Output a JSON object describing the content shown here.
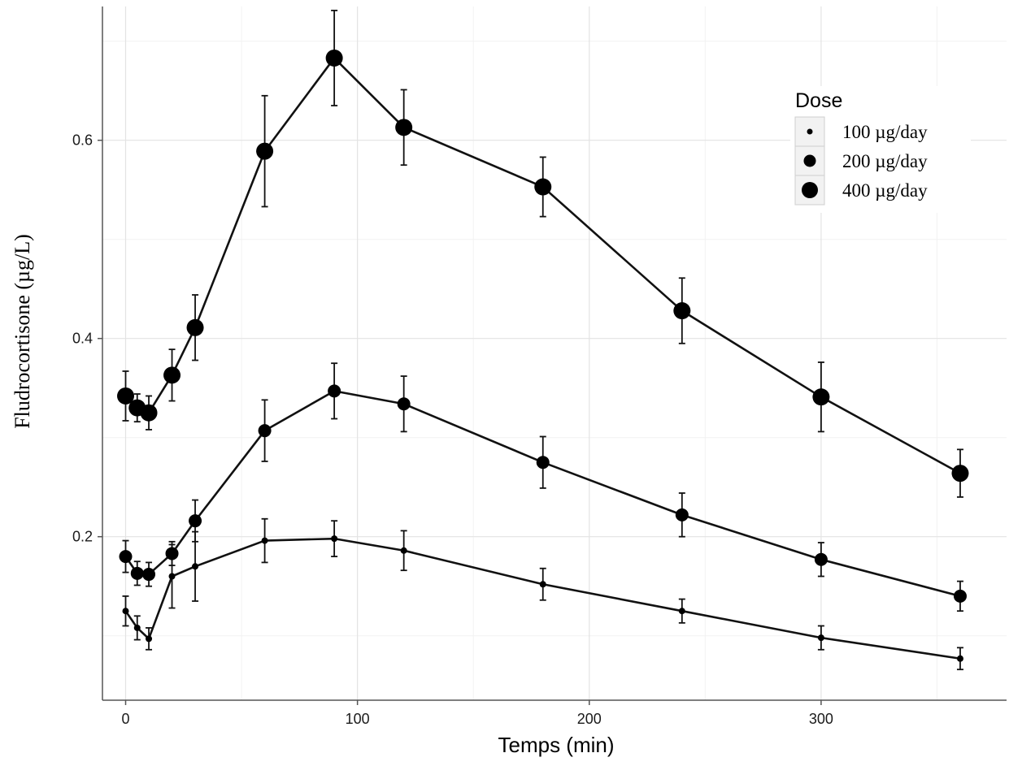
{
  "chart_data": {
    "type": "line",
    "xlabel": "Temps (min)",
    "ylabel": "Fludrocortisone (µg/L)",
    "xlim": [
      -10,
      380
    ],
    "ylim": [
      0.035,
      0.735
    ],
    "x_ticks": [
      0,
      100,
      200,
      300
    ],
    "y_ticks": [
      0.2,
      0.4,
      0.6
    ],
    "x_tick_labels": [
      "0",
      "100",
      "200",
      "300"
    ],
    "y_tick_labels": [
      "0.2",
      "0.4",
      "0.6"
    ],
    "grid": true,
    "legend": {
      "title": "Dose",
      "position": "top-right",
      "entries": [
        "100 µg/day",
        "200 µg/day",
        "400 µg/day"
      ]
    },
    "x": [
      0,
      5,
      10,
      20,
      30,
      60,
      90,
      120,
      180,
      240,
      300,
      360
    ],
    "series": [
      {
        "name": "100 µg/day",
        "marker_size": "small",
        "values": [
          0.125,
          0.108,
          0.097,
          0.16,
          0.17,
          0.196,
          0.198,
          0.186,
          0.152,
          0.125,
          0.098,
          0.077
        ],
        "errors": [
          0.015,
          0.012,
          0.011,
          0.032,
          0.035,
          0.022,
          0.018,
          0.02,
          0.016,
          0.012,
          0.012,
          0.011
        ]
      },
      {
        "name": "200 µg/day",
        "marker_size": "medium",
        "values": [
          0.18,
          0.163,
          0.162,
          0.183,
          0.216,
          0.307,
          0.347,
          0.334,
          0.275,
          0.222,
          0.177,
          0.14
        ],
        "errors": [
          0.016,
          0.012,
          0.012,
          0.012,
          0.021,
          0.031,
          0.028,
          0.028,
          0.026,
          0.022,
          0.017,
          0.015
        ]
      },
      {
        "name": "400 µg/day",
        "marker_size": "large",
        "values": [
          0.342,
          0.33,
          0.325,
          0.363,
          0.411,
          0.589,
          0.683,
          0.613,
          0.553,
          0.428,
          0.341,
          0.264
        ],
        "errors": [
          0.025,
          0.014,
          0.017,
          0.026,
          0.033,
          0.056,
          0.048,
          0.038,
          0.03,
          0.033,
          0.035,
          0.024
        ]
      }
    ]
  }
}
